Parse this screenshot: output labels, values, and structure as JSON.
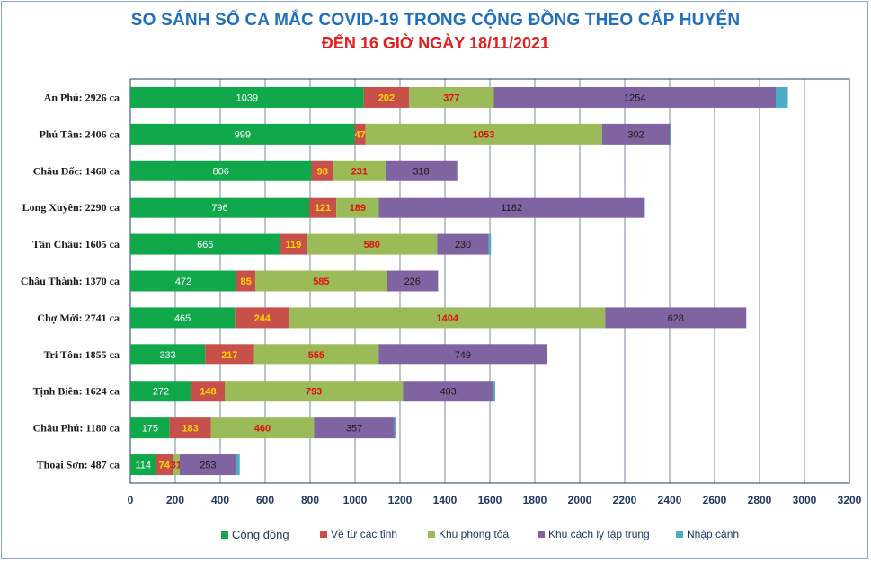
{
  "chart_data": {
    "type": "bar",
    "orientation": "horizontal",
    "stacked": true,
    "title": "SO SÁNH SỐ CA MẮC COVID-19 TRONG CỘNG ĐỒNG THEO CẤP HUYỆN",
    "subtitle": "ĐẾN 16 GIỜ NGÀY 18/11/2021",
    "categories": [
      "An Phú: 2926 ca",
      "Phú Tân: 2406 ca",
      "Châu Đốc: 1460 ca",
      "Long Xuyên: 2290 ca",
      "Tân Châu: 1605 ca",
      "Châu Thành: 1370 ca",
      "Chợ Mới: 2741 ca",
      "Tri Tôn:  1855 ca",
      "Tịnh Biên: 1624 ca",
      "Châu Phú: 1180 ca",
      "Thoại  Sơn: 487 ca"
    ],
    "series": [
      {
        "name": "Cộng đồng",
        "color": "#10a84b",
        "label_color": "#ffffff",
        "values": [
          1039,
          999,
          806,
          796,
          666,
          472,
          465,
          333,
          272,
          175,
          114
        ]
      },
      {
        "name": "Về từ các tỉnh",
        "color": "#c8504b",
        "label_color": "#ffd700",
        "values": [
          202,
          47,
          98,
          121,
          119,
          85,
          244,
          217,
          148,
          183,
          74
        ]
      },
      {
        "name": "Khu phong tỏa",
        "color": "#9bbb59",
        "label_color": "#e01010",
        "values": [
          377,
          1053,
          231,
          189,
          580,
          585,
          1404,
          555,
          793,
          460,
          31
        ]
      },
      {
        "name": "Khu cách ly tập trung",
        "color": "#8064a2",
        "label_color": "#1a1a1a",
        "values": [
          1254,
          302,
          318,
          1182,
          230,
          226,
          628,
          749,
          403,
          357,
          253
        ]
      },
      {
        "name": "Nhập cảnh",
        "color": "#4bacc6",
        "label_color": "#1a1a1a",
        "values": [
          54,
          5,
          7,
          2,
          10,
          2,
          0,
          1,
          8,
          5,
          15
        ]
      }
    ],
    "xlim": [
      0,
      3200
    ],
    "x_ticks": [
      0,
      200,
      400,
      600,
      800,
      1000,
      1200,
      1400,
      1600,
      1800,
      2000,
      2200,
      2400,
      2600,
      2800,
      3000,
      3200
    ],
    "grid": true,
    "legend_position": "bottom"
  }
}
